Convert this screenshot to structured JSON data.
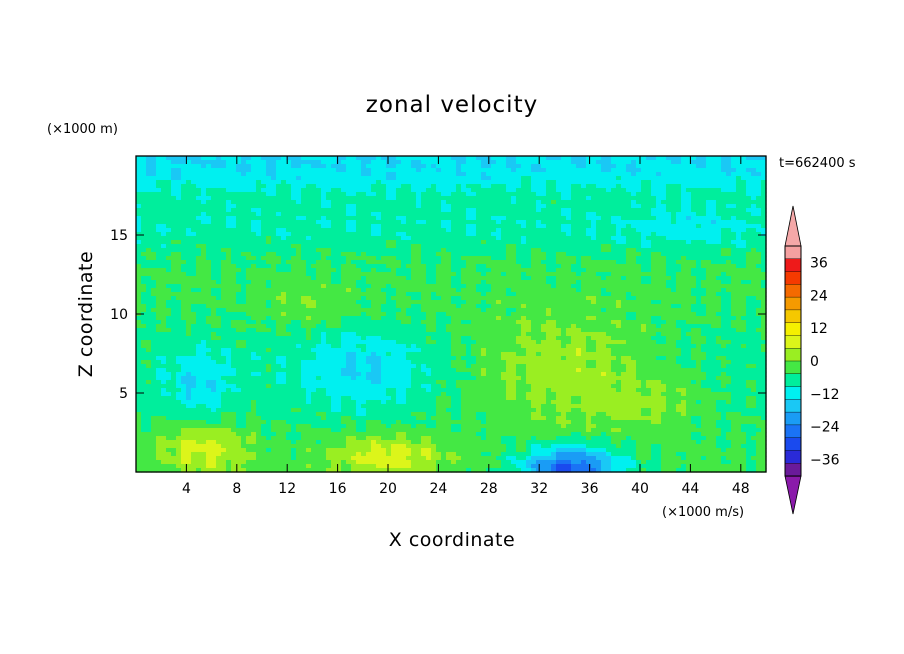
{
  "chart_data": {
    "type": "heatmap",
    "title": "zonal velocity",
    "xlabel": "X coordinate",
    "ylabel": "Z coordinate",
    "x_unit": "(×1000 m/s)",
    "y_unit": "(×1000 m)",
    "time_label": "t=662400 s",
    "xlim": [
      0,
      50
    ],
    "ylim": [
      0,
      20
    ],
    "x_ticks": [
      4,
      8,
      12,
      16,
      20,
      24,
      28,
      32,
      36,
      40,
      44,
      48
    ],
    "y_ticks": [
      5,
      10,
      15
    ],
    "colorbar": {
      "ticks": [
        36,
        24,
        12,
        0,
        -12,
        -24,
        -36
      ],
      "levels": [
        -42,
        -36,
        -30,
        -24,
        -18,
        -12,
        -6,
        0,
        6,
        12,
        18,
        24,
        30,
        36,
        42
      ],
      "colors": [
        "#6a1a9a",
        "#2a2ad8",
        "#1a4aee",
        "#1a73f5",
        "#1a9cf5",
        "#1ac8f5",
        "#00f0f0",
        "#00ee9c",
        "#44e844",
        "#9aee22",
        "#dcf51a",
        "#f5f000",
        "#f5c800",
        "#f59a00",
        "#f56a00",
        "#f53a00",
        "#ee1a1a",
        "#f5a0a0"
      ],
      "under_color": "#8a1aaa",
      "over_color": "#f5a8a8"
    },
    "field_description": "Estimated velocity field: negative near the top boundary, weak cyan minima at mid-left and mid-center, positive yellow region around x 28–44 at z 3–9, positive cores near the bottom around x 6 and x 20, strong negative core near the bottom around x 34."
  }
}
